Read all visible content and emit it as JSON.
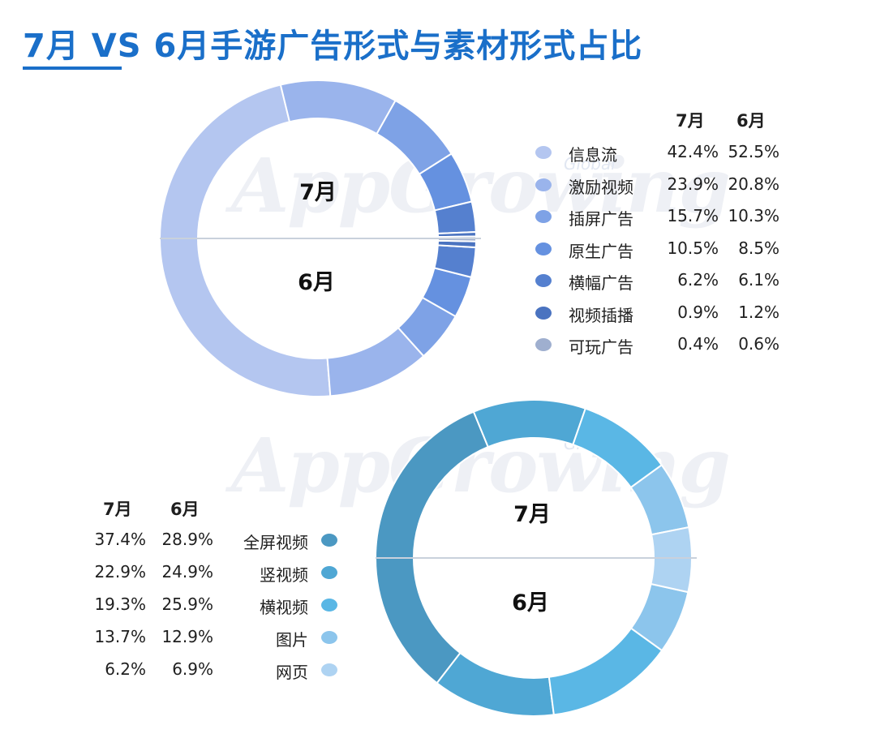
{
  "title": "7月 VS 6月手游广告形式与素材形式占比",
  "watermark": {
    "text": "AppGrowing",
    "sub": "Global"
  },
  "chart_data": [
    {
      "type": "donut",
      "title": "",
      "inner_labels": {
        "top": "7月",
        "bottom": "6月"
      },
      "legend_headers": [
        "7月",
        "6月"
      ],
      "categories": [
        "信息流",
        "激励视频",
        "插屏广告",
        "原生广告",
        "横幅广告",
        "视频插播",
        "可玩广告"
      ],
      "series": [
        {
          "name": "7月",
          "values": [
            42.4,
            23.9,
            15.7,
            10.5,
            6.2,
            0.9,
            0.4
          ]
        },
        {
          "name": "6月",
          "values": [
            52.5,
            20.8,
            10.3,
            8.5,
            6.1,
            1.2,
            0.6
          ]
        }
      ],
      "labels": {
        "7月": [
          "42.4%",
          "23.9%",
          "15.7%",
          "10.5%",
          "6.2%",
          "0.9%",
          "0.4%"
        ],
        "6月": [
          "52.5%",
          "20.8%",
          "10.3%",
          "8.5%",
          "6.1%",
          "1.2%",
          "0.6%"
        ]
      },
      "colors": [
        "#b4c6f0",
        "#9ab4ec",
        "#7ea2e6",
        "#6591e0",
        "#5580cf",
        "#4a73c0",
        "#9fafcf"
      ],
      "legend_position": "right"
    },
    {
      "type": "donut",
      "title": "",
      "inner_labels": {
        "top": "7月",
        "bottom": "6月"
      },
      "legend_headers": [
        "7月",
        "6月"
      ],
      "categories": [
        "全屏视频",
        "竖视频",
        "横视频",
        "图片",
        "网页"
      ],
      "series": [
        {
          "name": "7月",
          "values": [
            37.4,
            22.9,
            19.3,
            13.7,
            6.2
          ]
        },
        {
          "name": "6月",
          "values": [
            28.9,
            24.9,
            25.9,
            12.9,
            6.9
          ]
        }
      ],
      "labels": {
        "7月": [
          "37.4%",
          "22.9%",
          "19.3%",
          "13.7%",
          "6.2%"
        ],
        "6月": [
          "28.9%",
          "24.9%",
          "25.9%",
          "12.9%",
          "6.9%"
        ]
      },
      "colors": [
        "#4b98c2",
        "#4fa7d4",
        "#5ab7e5",
        "#8cc5ec",
        "#aed3f2"
      ],
      "legend_position": "left"
    }
  ]
}
